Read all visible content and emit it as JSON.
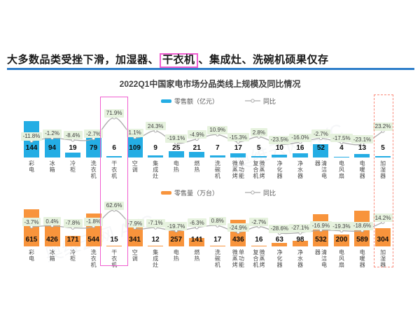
{
  "headline": {
    "prefix": "大多数品类受挫下滑，加湿器、",
    "highlighted": "干衣机",
    "suffix": "、集成灶、洗碗机硕果仅存"
  },
  "chart_title": "2022Q1中国家电市场分品类线上规模及同比情况",
  "watermark": "奥维云网 AVC",
  "colors": {
    "bar_blue": "#24ade4",
    "bar_orange": "#f8943c",
    "yoy_line": "#ababab",
    "chip_bg": "#e6f2de",
    "headline_rule": "#2b7cc9",
    "pink_highlight": "#f05ed0",
    "red_dashed_highlight": "#fa8a7a"
  },
  "highlights": {
    "pink_box_category": "干衣机",
    "red_dashed_box_category": "加湿器"
  },
  "chart_data": [
    {
      "type": "bar",
      "title": "零售额（亿元）及同比",
      "legend_bar": "零售额（亿元）",
      "legend_line": "同比",
      "categories": [
        "彩电",
        "冰箱",
        "冷柜",
        "洗衣机",
        "干衣机",
        "空调",
        "集成灶",
        "电热",
        "燃热",
        "洗碗机",
        "微蒸烤单功能",
        "微蒸烤复合机",
        "净化器",
        "净水器",
        "清洁电器",
        "电风扇",
        "电暖器",
        "加湿器"
      ],
      "categories_display": [
        "彩电",
        "冰箱",
        "冷柜",
        "洗衣机",
        "干衣机",
        "空调",
        "集成灶",
        "电热",
        "燃热",
        "洗碗机",
        "单功能\n微蒸烤",
        "微蒸烤\n复合机",
        "净化器",
        "净水器",
        "清洁电\n器",
        "电风扇",
        "电暖器",
        "加湿器"
      ],
      "values": [
        144,
        94,
        19,
        79,
        6,
        109,
        9,
        25,
        21,
        7,
        17,
        5,
        10,
        16,
        52,
        4,
        13,
        5
      ],
      "yoy_pct": [
        -11.8,
        -1.2,
        -8.4,
        -2.7,
        71.9,
        1.1,
        24.3,
        -19.1,
        -4.9,
        10.9,
        -15.3,
        2.8,
        -23.5,
        -16.0,
        -2.7,
        -17.5,
        -23.1,
        23.2
      ],
      "legend_position": "top",
      "grid": false
    },
    {
      "type": "bar",
      "title": "零售量（万台）及同比",
      "legend_bar": "零售量（万台）",
      "legend_line": "同比",
      "categories": [
        "彩电",
        "冰箱",
        "冷柜",
        "洗衣机",
        "干衣机",
        "空调",
        "集成灶",
        "电热",
        "燃热",
        "洗碗机",
        "微蒸烤单功能",
        "微蒸烤复合机",
        "净化器",
        "净水器",
        "清洁电器",
        "电风扇",
        "电暖器",
        "加湿器"
      ],
      "categories_display": [
        "彩电",
        "冰箱",
        "冷柜",
        "洗衣机",
        "干衣机",
        "空调",
        "集成灶",
        "电热",
        "燃热",
        "洗碗机",
        "单功能\n微蒸烤",
        "微蒸烤\n复合机",
        "净化器",
        "净水器",
        "清洁电\n器",
        "电风扇",
        "电暖器",
        "加湿器"
      ],
      "values": [
        615,
        426,
        171,
        544,
        15,
        341,
        12,
        257,
        141,
        17,
        436,
        16,
        63,
        98,
        532,
        200,
        589,
        304
      ],
      "yoy_pct": [
        -3.7,
        0.4,
        -7.8,
        -1.8,
        62.6,
        -7.9,
        -7.1,
        -19.7,
        -6.3,
        0.8,
        -24.9,
        -2.7,
        -28.6,
        -27.1,
        -16.9,
        -19.3,
        -18.6,
        14.2
      ],
      "legend_position": "top",
      "grid": false
    }
  ]
}
